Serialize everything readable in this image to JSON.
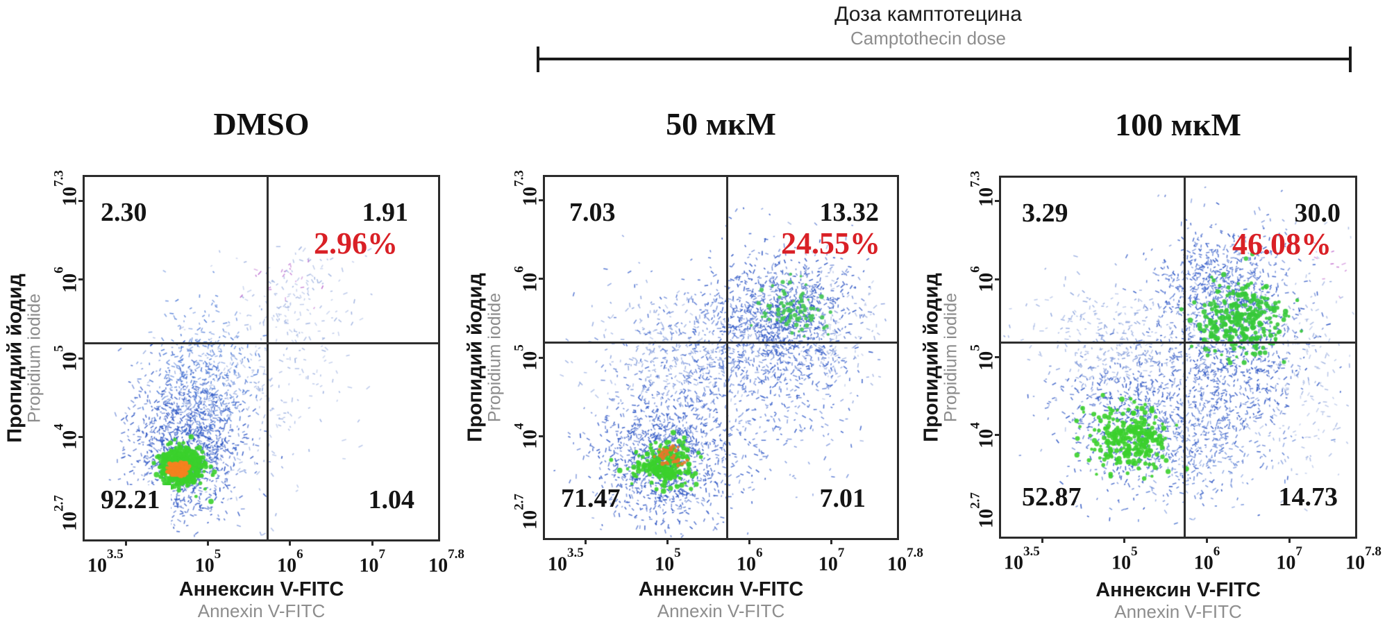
{
  "colors": {
    "accent_red": "#d92026",
    "muted_gray": "#8d8d8d",
    "scatter_blue": "#2e56c4",
    "core_green": "#3bd02c",
    "core_orange": "#f5821f",
    "frame": "#2b2b2b"
  },
  "chart_data": {
    "type": "scatter",
    "subtype": "flow-cytometry-density-plot",
    "header": {
      "title_ru": "Доза камптотецина",
      "title_en": "Camptothecin dose"
    },
    "tick_base": "10",
    "x_axis": {
      "label_ru": "Аннексин V-FITC",
      "label_en": "Annexin V-FITC",
      "scale": "log10",
      "range_log": [
        3.5,
        7.8
      ],
      "tick_labels": [
        {
          "sup": "3.5",
          "log": 3.5,
          "edge": "left"
        },
        {
          "sup": "5",
          "log": 5
        },
        {
          "sup": "6",
          "log": 6
        },
        {
          "sup": "7",
          "log": 7
        },
        {
          "sup": "7.8",
          "log": 7.8,
          "edge": "right"
        }
      ],
      "tick_mark_logs": [
        4,
        5,
        6,
        7
      ]
    },
    "y_axis": {
      "label_ru": "Пропидий йодид",
      "label_en": "Propidium iodide",
      "scale": "log10",
      "range_log": [
        2.7,
        7.3
      ],
      "tick_labels": [
        {
          "sup": "2.7",
          "log": 2.7,
          "edge": "bottom"
        },
        {
          "sup": "4",
          "log": 4
        },
        {
          "sup": "5",
          "log": 5
        },
        {
          "sup": "6",
          "log": 6
        },
        {
          "sup": "7.3",
          "log": 7.3,
          "edge": "top"
        }
      ],
      "tick_mark_logs": [
        4,
        5,
        6,
        7
      ]
    },
    "gate": {
      "x_log": 5.73,
      "y_log": 5.19
    },
    "panels": [
      {
        "title": "DMSO",
        "quadrants": {
          "upper_left": "2.30",
          "upper_right": "1.91",
          "lower_left": "92.21",
          "lower_right": "1.04"
        },
        "apoptotic_fraction_label": "2.96%",
        "clusters": [
          {
            "kind": "dash",
            "color": "#2e56c4",
            "n": 1150,
            "cx": 4.72,
            "cy": 3.85,
            "sx": 0.34,
            "sy": 0.46
          },
          {
            "kind": "dash",
            "color": "#4e7ad6",
            "n": 420,
            "cx": 4.95,
            "cy": 4.75,
            "sx": 0.3,
            "sy": 0.42
          },
          {
            "kind": "dash",
            "color": "#94aade",
            "n": 160,
            "cx": 5.35,
            "cy": 4.35,
            "sx": 0.55,
            "sy": 0.6
          },
          {
            "kind": "dash",
            "color": "#9fb2e0",
            "n": 140,
            "cx": 6.08,
            "cy": 5.75,
            "sx": 0.38,
            "sy": 0.3
          },
          {
            "kind": "dash",
            "color": "#bd6fd0",
            "n": 20,
            "cx": 5.95,
            "cy": 5.92,
            "sx": 0.26,
            "sy": 0.18
          },
          {
            "kind": "dash",
            "color": "#a4b6e2",
            "n": 70,
            "cx": 5.95,
            "cy": 4.95,
            "sx": 0.45,
            "sy": 0.35
          },
          {
            "kind": "blob",
            "color": "#3bd02c",
            "n": 430,
            "cx": 4.68,
            "cy": 3.62,
            "sx": 0.13,
            "sy": 0.12,
            "r": 3.2
          },
          {
            "kind": "blob",
            "color": "#f5821f",
            "n": 140,
            "cx": 4.64,
            "cy": 3.6,
            "sx": 0.055,
            "sy": 0.05,
            "r": 2.8
          }
        ]
      },
      {
        "title": "50 мкМ",
        "quadrants": {
          "upper_left": "7.03",
          "upper_right": "13.32",
          "lower_left": "71.47",
          "lower_right": "7.01"
        },
        "apoptotic_fraction_label": "24.55%",
        "clusters": [
          {
            "kind": "dash",
            "color": "#2e56c4",
            "n": 1000,
            "cx": 4.95,
            "cy": 3.7,
            "sx": 0.42,
            "sy": 0.4
          },
          {
            "kind": "dash",
            "color": "#3d64cc",
            "n": 900,
            "cx": 5.9,
            "cy": 4.9,
            "sx": 0.65,
            "sy": 0.65
          },
          {
            "kind": "dash",
            "color": "#2e56c4",
            "n": 800,
            "cx": 6.45,
            "cy": 5.55,
            "sx": 0.42,
            "sy": 0.38
          },
          {
            "kind": "dash",
            "color": "#8aa2dc",
            "n": 300,
            "cx": 5.15,
            "cy": 5.05,
            "sx": 0.55,
            "sy": 0.38
          },
          {
            "kind": "dash",
            "color": "#9fb2e0",
            "n": 120,
            "cx": 7.0,
            "cy": 5.3,
            "sx": 0.3,
            "sy": 0.5
          },
          {
            "kind": "blob",
            "color": "#3bd02c",
            "n": 240,
            "cx": 4.93,
            "cy": 3.64,
            "sx": 0.17,
            "sy": 0.13,
            "r": 3.0
          },
          {
            "kind": "blob",
            "color": "#42c653",
            "n": 85,
            "cx": 6.5,
            "cy": 5.6,
            "sx": 0.2,
            "sy": 0.16,
            "r": 2.6
          },
          {
            "kind": "blob",
            "color": "#e8752a",
            "n": 40,
            "cx": 5.02,
            "cy": 3.76,
            "sx": 0.09,
            "sy": 0.07,
            "r": 2.4
          }
        ]
      },
      {
        "title": "100 мкМ",
        "quadrants": {
          "upper_left": "3.29",
          "upper_right": "30.0",
          "lower_left": "52.87",
          "lower_right": "14.73"
        },
        "apoptotic_fraction_label": "46.08%",
        "clusters": [
          {
            "kind": "dash",
            "color": "#2e56c4",
            "n": 700,
            "cx": 5.15,
            "cy": 4.15,
            "sx": 0.48,
            "sy": 0.45
          },
          {
            "kind": "dash",
            "color": "#2e56c4",
            "n": 1050,
            "cx": 6.3,
            "cy": 5.2,
            "sx": 0.46,
            "sy": 0.65
          },
          {
            "kind": "dash",
            "color": "#3d64cc",
            "n": 350,
            "cx": 6.15,
            "cy": 6.0,
            "sx": 0.4,
            "sy": 0.3
          },
          {
            "kind": "dash",
            "color": "#8aa2dc",
            "n": 330,
            "cx": 4.85,
            "cy": 5.1,
            "sx": 0.5,
            "sy": 0.4
          },
          {
            "kind": "dash",
            "color": "#9fb2e0",
            "n": 150,
            "cx": 7.22,
            "cy": 4.8,
            "sx": 0.28,
            "sy": 0.72
          },
          {
            "kind": "dash",
            "color": "#5b80d4",
            "n": 300,
            "cx": 5.9,
            "cy": 3.9,
            "sx": 0.45,
            "sy": 0.4
          },
          {
            "kind": "blob",
            "color": "#3bd02c",
            "n": 260,
            "cx": 5.05,
            "cy": 3.95,
            "sx": 0.25,
            "sy": 0.2,
            "r": 3.0
          },
          {
            "kind": "blob",
            "color": "#36c93a",
            "n": 280,
            "cx": 6.38,
            "cy": 5.5,
            "sx": 0.27,
            "sy": 0.24,
            "r": 3.0
          },
          {
            "kind": "dash",
            "color": "#c678d2",
            "n": 8,
            "cx": 7.55,
            "cy": 6.1,
            "sx": 0.1,
            "sy": 0.12
          }
        ]
      }
    ]
  }
}
